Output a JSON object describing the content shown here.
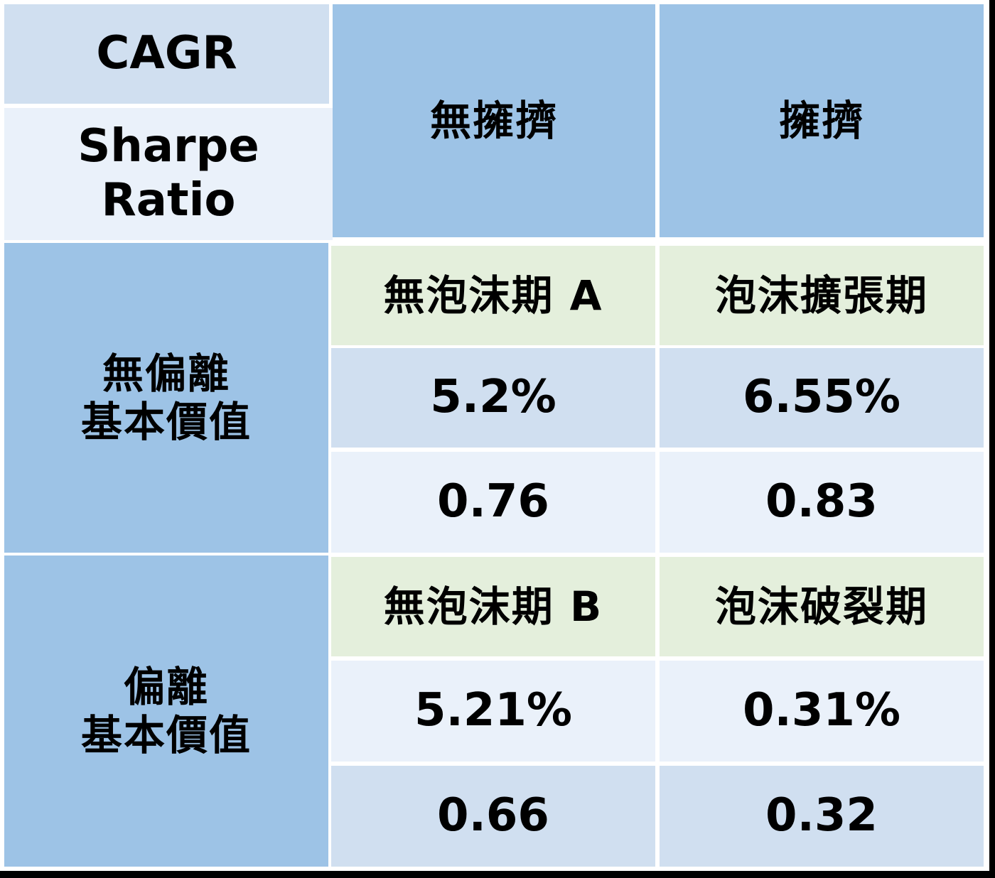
{
  "key": {
    "top": "CAGR",
    "bottom_line1": "Sharpe",
    "bottom_line2": "Ratio"
  },
  "columns": {
    "col1": "無擁擠",
    "col2": "擁擠"
  },
  "rows": [
    {
      "header_line1": "無偏離",
      "header_line2": "基本價值",
      "col1_label": "無泡沫期 A",
      "col2_label": "泡沫擴張期",
      "col1_cagr": "5.2%",
      "col2_cagr": "6.55%",
      "col1_sharpe": "0.76",
      "col2_sharpe": "0.83"
    },
    {
      "header_line1": "偏離",
      "header_line2": "基本價值",
      "col1_label": "無泡沫期 B",
      "col2_label": "泡沫破裂期",
      "col1_cagr": "5.21%",
      "col2_cagr": "0.31%",
      "col1_sharpe": "0.66",
      "col2_sharpe": "0.32"
    }
  ],
  "colors": {
    "header_blue": "#9dc3e6",
    "label_green": "#e4efdc",
    "value_dark": "#d0dff0",
    "value_light": "#eaf1fa",
    "background": "#000000",
    "grid": "#ffffff"
  }
}
